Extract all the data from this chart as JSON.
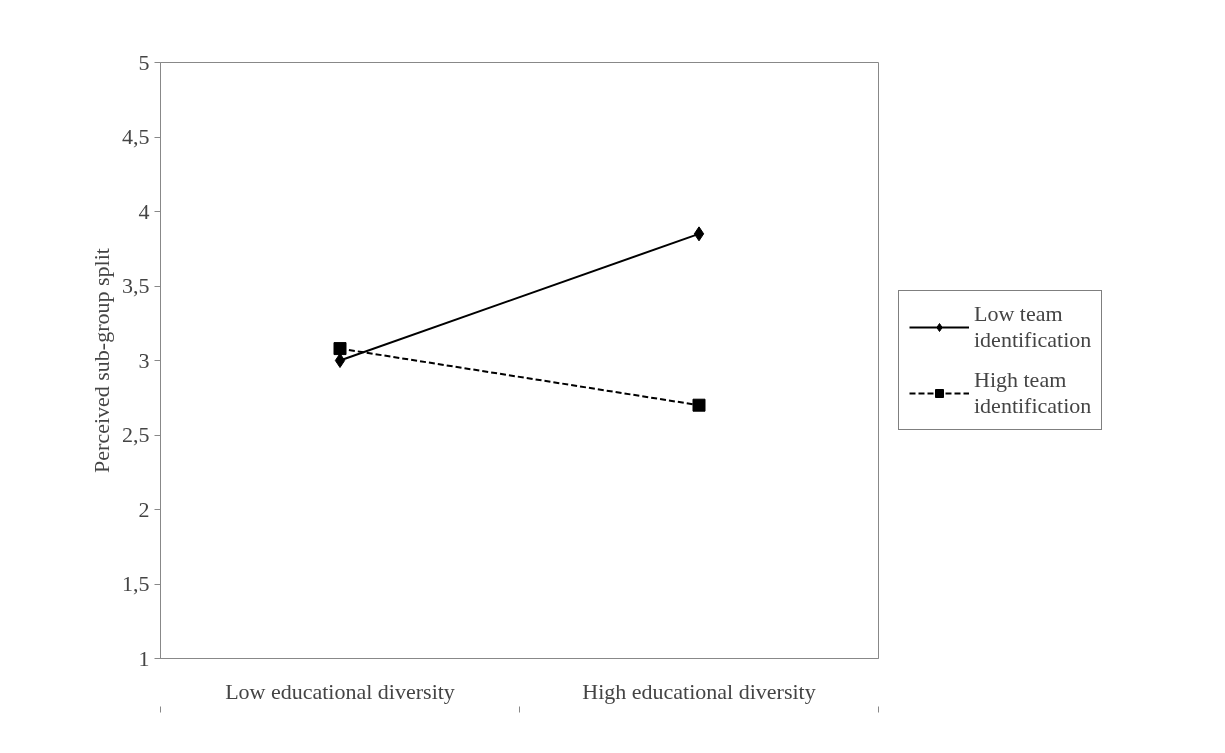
{
  "chart_data": {
    "type": "line",
    "ylabel": "Perceived sub-group split",
    "categories": [
      "Low educational diversity",
      "High educational diversity"
    ],
    "series": [
      {
        "name": "Low team identification",
        "color": "#000000",
        "values": [
          3.0,
          3.85
        ],
        "marker": "diamond",
        "line_style": "solid"
      },
      {
        "name": "High team identification",
        "color": "#000000",
        "values": [
          3.08,
          2.7
        ],
        "marker": "square",
        "line_style": "dashed"
      }
    ],
    "ylim": [
      1,
      5
    ],
    "yticks": [
      1,
      {
        "value": 1.5,
        "label": "1,5"
      },
      2,
      {
        "value": 2.5,
        "label": "2,5"
      },
      3,
      {
        "value": 3.5,
        "label": "3,5"
      },
      4,
      {
        "value": 4.5,
        "label": "4,5"
      },
      5
    ],
    "grid": false,
    "legend": "right"
  }
}
